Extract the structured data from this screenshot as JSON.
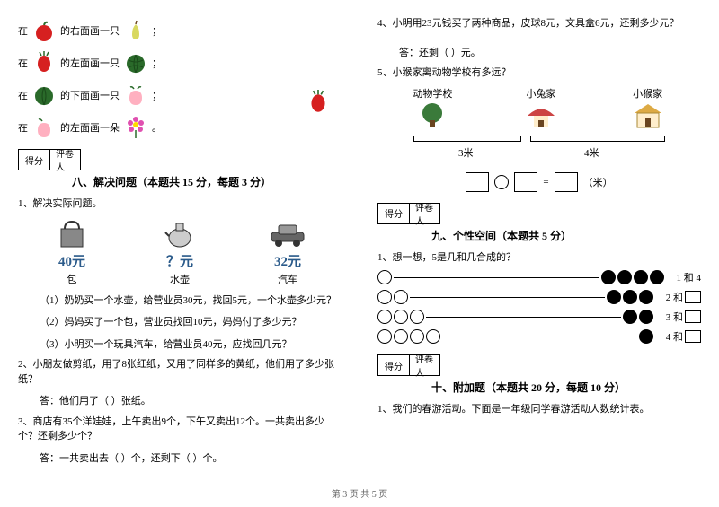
{
  "left": {
    "directions": [
      {
        "prefix": "在",
        "text": "的右面画一只",
        "suffix": "；"
      },
      {
        "prefix": "在",
        "text": "的左面画一只",
        "suffix": "；"
      },
      {
        "prefix": "在",
        "text": "的下面画一只",
        "suffix": "；"
      },
      {
        "prefix": "在",
        "text": "的左面画一朵",
        "suffix": "。"
      }
    ],
    "score_table": {
      "col1": "得分",
      "col2": "评卷人"
    },
    "section8_title": "八、解决问题（本题共 15 分，每题 3 分）",
    "q1": "1、解决实际问题。",
    "items": [
      {
        "price": "40元",
        "name": "包",
        "color": "#5588bb"
      },
      {
        "price": "？元",
        "name": "水壶",
        "color": "#333333"
      },
      {
        "price": "32元",
        "name": "汽车",
        "color": "#333333"
      }
    ],
    "q1_1": "（1）奶奶买一个水壶，给营业员30元，找回5元，一个水壶多少元？",
    "q1_2": "（2）妈妈买了一个包，营业员找回10元，妈妈付了多少元？",
    "q1_3": "（3）小明买一个玩具汽车，给营业员40元，应找回几元？",
    "q2": "2、小朋友做剪纸，用了8张红纸，又用了同样多的黄纸，他们用了多少张纸？",
    "q2_ans": "答：他们用了（    ）张纸。",
    "q3": "3、商店有35个洋娃娃，上午卖出9个，下午又卖出12个。一共卖出多少个？还剩多少个？",
    "q3_ans": "答：一共卖出去（    ）个，还剩下（    ）个。"
  },
  "right": {
    "q4": "4、小明用23元钱买了两种商品，皮球8元，文具盒6元，还剩多少元？",
    "q4_ans": "答：还剩（    ）元。",
    "q5": "5、小猴家离动物学校有多远？",
    "schools": [
      {
        "label": "动物学校",
        "color": "#3a7a3a"
      },
      {
        "label": "小兔家",
        "color": "#cc4444"
      },
      {
        "label": "小猴家",
        "color": "#ddaa44"
      }
    ],
    "dist1": "3米",
    "dist2": "4米",
    "eq_unit": "（米）",
    "eq_equals": "=",
    "score_table": {
      "col1": "得分",
      "col2": "评卷人"
    },
    "section9_title": "九、个性空间（本题共 5 分）",
    "q9_1": "1、想一想，5是几和几合成的？",
    "beads": [
      {
        "empty": 1,
        "filled": 4,
        "label_pre": "1 和 4",
        "has_box": false
      },
      {
        "empty": 2,
        "filled": 3,
        "label_pre": "2 和",
        "has_box": true
      },
      {
        "empty": 3,
        "filled": 2,
        "label_pre": "3 和",
        "has_box": true
      },
      {
        "empty": 4,
        "filled": 1,
        "label_pre": "4 和",
        "has_box": true
      }
    ],
    "section10_title": "十、附加题（本题共 20 分，每题 10 分）",
    "q10_1": "1、我们的春游活动。下面是一年级同学春游活动人数统计表。"
  },
  "footer": "第 3 页 共 5 页",
  "colors": {
    "apple": "#d62020",
    "pear": "#d8d860",
    "watermelon": "#2a6a2a",
    "peach": "#ffb0c0",
    "flower": "#e050b0"
  }
}
